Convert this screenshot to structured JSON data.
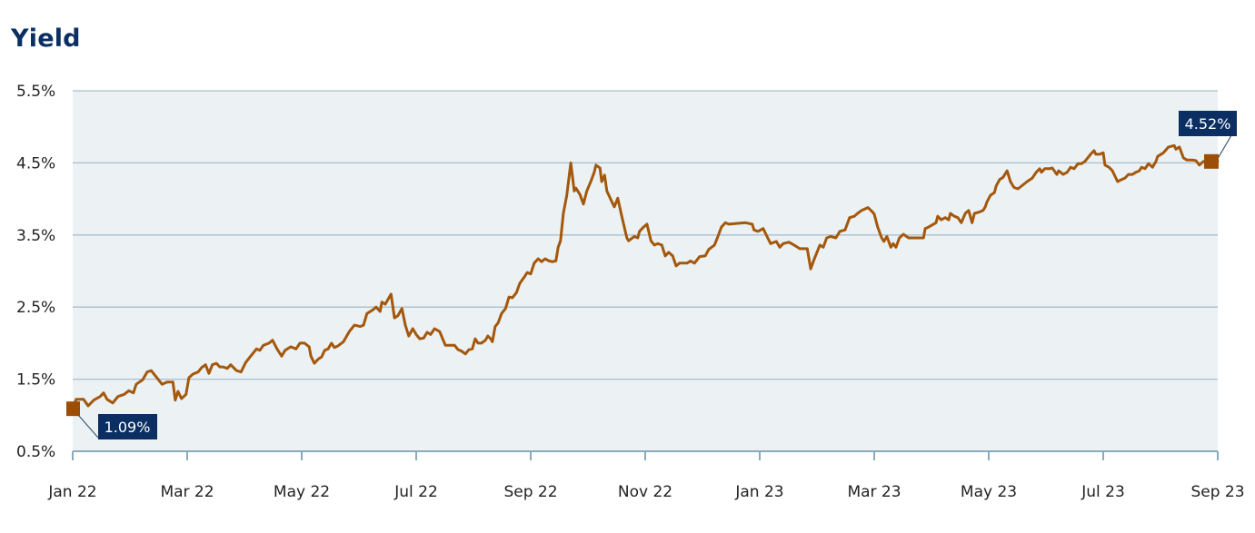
{
  "title": "Yield",
  "colors": {
    "line": "#a3580c",
    "marker": "#9c4e06",
    "plot_bg": "#ecf1f4",
    "grid": "#a8c0cf",
    "axis": "#8aaabd",
    "callout_bg": "#0b2f63",
    "title": "#0b2f63"
  },
  "callouts": {
    "start": "1.09%",
    "end": "4.52%"
  },
  "chart_data": {
    "type": "line",
    "title": "Yield",
    "xlabel": "",
    "ylabel": "",
    "ylim": [
      0.5,
      5.5
    ],
    "yticks": [
      "0.5%",
      "1.5%",
      "2.5%",
      "3.5%",
      "4.5%",
      "5.5%"
    ],
    "ytick_values": [
      0.5,
      1.5,
      2.5,
      3.5,
      4.5,
      5.5
    ],
    "xticks": [
      "Jan 22",
      "Mar 22",
      "May 22",
      "Jul 22",
      "Sep 22",
      "Nov 22",
      "Jan 23",
      "Mar 23",
      "May 23",
      "Jul 23",
      "Sep 23"
    ],
    "xtick_positions_months": [
      0,
      2,
      4,
      6,
      8,
      10,
      12,
      14,
      16,
      18,
      20
    ],
    "grid": true,
    "legend": "none",
    "annotations": [
      {
        "label": "1.09%",
        "x_months": 0,
        "value": 1.09
      },
      {
        "label": "4.52%",
        "x_months": 20,
        "value": 4.52
      }
    ],
    "series": [
      {
        "name": "Yield",
        "x_months": [
          0.0,
          0.06,
          0.19,
          0.27,
          0.37,
          0.48,
          0.54,
          0.6,
          0.7,
          0.79,
          0.9,
          0.98,
          1.06,
          1.11,
          1.22,
          1.3,
          1.37,
          1.46,
          1.56,
          1.65,
          1.75,
          1.79,
          1.84,
          1.9,
          1.98,
          2.03,
          2.1,
          2.19,
          2.25,
          2.32,
          2.38,
          2.44,
          2.51,
          2.57,
          2.63,
          2.7,
          2.76,
          2.86,
          2.94,
          3.02,
          3.11,
          3.21,
          3.27,
          3.33,
          3.43,
          3.49,
          3.57,
          3.65,
          3.71,
          3.81,
          3.9,
          3.97,
          4.05,
          4.13,
          4.16,
          4.22,
          4.29,
          4.35,
          4.4,
          4.46,
          4.52,
          4.57,
          4.63,
          4.73,
          4.83,
          4.92,
          5.02,
          5.08,
          5.14,
          5.24,
          5.3,
          5.37,
          5.4,
          5.46,
          5.56,
          5.62,
          5.68,
          5.75,
          5.81,
          5.87,
          5.94,
          6.0,
          6.06,
          6.13,
          6.19,
          6.25,
          6.32,
          6.41,
          6.51,
          6.57,
          6.67,
          6.73,
          6.79,
          6.86,
          6.92,
          6.98,
          7.03,
          7.08,
          7.14,
          7.21,
          7.25,
          7.3,
          7.33,
          7.38,
          7.43,
          7.49,
          7.56,
          7.62,
          7.68,
          7.75,
          7.81,
          7.89,
          7.94,
          8.0,
          8.06,
          8.13,
          8.19,
          8.25,
          8.32,
          8.38,
          8.44,
          8.48,
          8.52,
          8.57,
          8.63,
          8.7,
          8.76,
          8.79,
          8.86,
          8.92,
          8.98,
          9.05,
          9.11,
          9.14,
          9.21,
          9.24,
          9.29,
          9.33,
          9.4,
          9.46,
          9.52,
          9.59,
          9.68,
          9.71,
          9.81,
          9.87,
          9.9,
          9.97,
          10.03,
          10.1,
          10.16,
          10.22,
          10.29,
          10.35,
          10.41,
          10.48,
          10.54,
          10.6,
          10.67,
          10.73,
          10.79,
          10.86,
          10.95,
          11.05,
          11.11,
          11.21,
          11.27,
          11.33,
          11.4,
          11.46,
          11.59,
          11.75,
          11.87,
          11.9,
          11.97,
          12.06,
          12.14,
          12.19,
          12.29,
          12.35,
          12.41,
          12.51,
          12.6,
          12.7,
          12.83,
          12.89,
          12.95,
          13.05,
          13.11,
          13.17,
          13.24,
          13.33,
          13.4,
          13.49,
          13.57,
          13.65,
          13.71,
          13.78,
          13.89,
          13.97,
          14.0,
          14.06,
          14.13,
          14.17,
          14.22,
          14.29,
          14.33,
          14.38,
          14.44,
          14.51,
          14.6,
          14.67,
          14.86,
          14.89,
          14.95,
          15.08,
          15.11,
          15.17,
          15.24,
          15.3,
          15.33,
          15.4,
          15.46,
          15.52,
          15.59,
          15.65,
          15.71,
          15.75,
          15.84,
          15.9,
          15.94,
          15.97,
          16.03,
          16.1,
          16.13,
          16.19,
          16.25,
          16.32,
          16.38,
          16.44,
          16.51,
          16.59,
          16.67,
          16.76,
          16.83,
          16.89,
          16.92,
          16.98,
          17.06,
          17.11,
          17.19,
          17.22,
          17.3,
          17.37,
          17.43,
          17.49,
          17.56,
          17.62,
          17.68,
          17.78,
          17.84,
          17.87,
          17.94,
          18.0,
          18.03,
          18.1,
          18.16,
          18.25,
          18.32,
          18.38,
          18.44,
          18.51,
          18.57,
          18.63,
          18.67,
          18.73,
          18.79,
          18.86,
          18.92,
          18.95,
          19.05,
          19.14,
          19.24,
          19.27,
          19.33,
          19.4,
          19.46,
          19.56,
          19.62,
          19.68,
          19.75,
          19.84,
          20.0
        ],
        "values": [
          1.09,
          1.22,
          1.22,
          1.13,
          1.21,
          1.26,
          1.31,
          1.22,
          1.17,
          1.26,
          1.29,
          1.34,
          1.31,
          1.43,
          1.49,
          1.6,
          1.62,
          1.53,
          1.43,
          1.46,
          1.46,
          1.21,
          1.33,
          1.23,
          1.29,
          1.52,
          1.57,
          1.6,
          1.66,
          1.7,
          1.58,
          1.7,
          1.72,
          1.67,
          1.67,
          1.65,
          1.7,
          1.62,
          1.6,
          1.73,
          1.82,
          1.92,
          1.9,
          1.97,
          2.0,
          2.04,
          1.92,
          1.82,
          1.9,
          1.95,
          1.92,
          2.0,
          2.0,
          1.95,
          1.82,
          1.72,
          1.78,
          1.81,
          1.9,
          1.92,
          2.0,
          1.94,
          1.96,
          2.02,
          2.16,
          2.25,
          2.23,
          2.25,
          2.41,
          2.46,
          2.5,
          2.44,
          2.57,
          2.54,
          2.68,
          2.35,
          2.38,
          2.48,
          2.25,
          2.1,
          2.2,
          2.12,
          2.06,
          2.07,
          2.15,
          2.12,
          2.2,
          2.16,
          1.97,
          1.97,
          1.97,
          1.91,
          1.89,
          1.85,
          1.91,
          1.92,
          2.06,
          2.0,
          2.0,
          2.04,
          2.1,
          2.06,
          2.02,
          2.23,
          2.28,
          2.41,
          2.48,
          2.64,
          2.63,
          2.7,
          2.83,
          2.92,
          2.98,
          2.96,
          3.11,
          3.17,
          3.13,
          3.17,
          3.14,
          3.13,
          3.14,
          3.33,
          3.42,
          3.8,
          4.05,
          4.5,
          4.11,
          4.15,
          4.06,
          3.93,
          4.11,
          4.24,
          4.37,
          4.47,
          4.43,
          4.24,
          4.33,
          4.11,
          3.99,
          3.89,
          4.01,
          3.76,
          3.46,
          3.42,
          3.48,
          3.46,
          3.55,
          3.61,
          3.65,
          3.42,
          3.36,
          3.38,
          3.36,
          3.21,
          3.26,
          3.21,
          3.07,
          3.11,
          3.11,
          3.11,
          3.14,
          3.11,
          3.2,
          3.21,
          3.3,
          3.36,
          3.48,
          3.61,
          3.67,
          3.65,
          3.66,
          3.67,
          3.65,
          3.57,
          3.55,
          3.59,
          3.46,
          3.38,
          3.41,
          3.33,
          3.38,
          3.4,
          3.36,
          3.31,
          3.31,
          3.03,
          3.16,
          3.36,
          3.33,
          3.46,
          3.48,
          3.46,
          3.55,
          3.57,
          3.74,
          3.76,
          3.8,
          3.84,
          3.88,
          3.82,
          3.79,
          3.61,
          3.46,
          3.41,
          3.48,
          3.33,
          3.38,
          3.33,
          3.46,
          3.51,
          3.46,
          3.46,
          3.46,
          3.59,
          3.61,
          3.67,
          3.76,
          3.71,
          3.74,
          3.71,
          3.8,
          3.76,
          3.74,
          3.67,
          3.8,
          3.84,
          3.67,
          3.8,
          3.82,
          3.84,
          3.89,
          3.96,
          4.05,
          4.09,
          4.18,
          4.27,
          4.3,
          4.39,
          4.24,
          4.16,
          4.14,
          4.19,
          4.24,
          4.29,
          4.37,
          4.42,
          4.37,
          4.42,
          4.42,
          4.43,
          4.34,
          4.39,
          4.34,
          4.37,
          4.44,
          4.42,
          4.49,
          4.49,
          4.52,
          4.62,
          4.67,
          4.62,
          4.62,
          4.64,
          4.47,
          4.44,
          4.39,
          4.24,
          4.27,
          4.29,
          4.34,
          4.34,
          4.37,
          4.39,
          4.44,
          4.42,
          4.49,
          4.44,
          4.52,
          4.59,
          4.64,
          4.72,
          4.74,
          4.69,
          4.72,
          4.57,
          4.54,
          4.54,
          4.53,
          4.47,
          4.52,
          4.53,
          4.52
        ]
      }
    ]
  }
}
